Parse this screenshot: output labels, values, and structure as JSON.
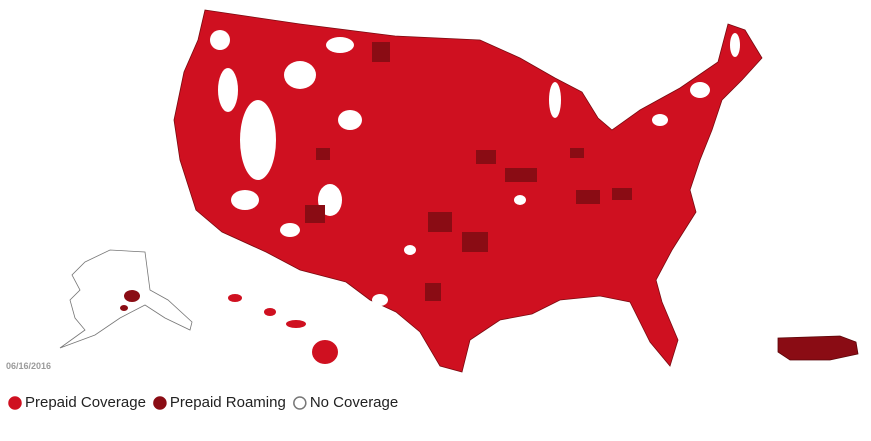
{
  "date": "06/16/2016",
  "legend": [
    {
      "label": "Prepaid Coverage",
      "color": "#cf1020"
    },
    {
      "label": "Prepaid Roaming",
      "color": "#8a0c14"
    },
    {
      "label": "No Coverage",
      "color": "#ffffff"
    }
  ]
}
